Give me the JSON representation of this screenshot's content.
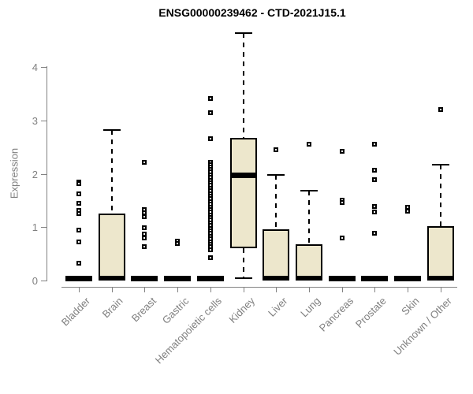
{
  "title": "ENSG00000239462 - CTD-2021J15.1",
  "chart_data": {
    "type": "boxplot",
    "title": "ENSG00000239462 - CTD-2021J15.1",
    "xlabel": "",
    "ylabel": "Expression",
    "ylim": [
      0,
      4.7
    ],
    "yticks": [
      0,
      1,
      2,
      3,
      4
    ],
    "grid": false,
    "legend": "none",
    "x_tick_rotation_deg": 45,
    "categories": [
      "Bladder",
      "Brain",
      "Breast",
      "Gastric",
      "Hematopoietic cells",
      "Kidney",
      "Liver",
      "Lung",
      "Pancreas",
      "Prostate",
      "Skin",
      "Unknown / Other"
    ],
    "series": [
      {
        "name": "Bladder",
        "q1": 0,
        "median": 0,
        "q3": 0,
        "whisker_low": 0,
        "whisker_high": 0,
        "outliers": [
          1.84,
          1.81,
          1.63,
          1.45,
          1.32,
          1.25,
          0.94,
          0.72,
          0.33
        ]
      },
      {
        "name": "Brain",
        "q1": 0,
        "median": 0,
        "q3": 1.26,
        "whisker_low": 0,
        "whisker_high": 2.82,
        "outliers": []
      },
      {
        "name": "Breast",
        "q1": 0,
        "median": 0,
        "q3": 0,
        "whisker_low": 0,
        "whisker_high": 0,
        "outliers": [
          2.21,
          1.33,
          1.27,
          1.2,
          0.99,
          0.87,
          0.79,
          0.63
        ]
      },
      {
        "name": "Gastric",
        "q1": 0,
        "median": 0,
        "q3": 0,
        "whisker_low": 0,
        "whisker_high": 0,
        "outliers": [
          0.74,
          0.7
        ]
      },
      {
        "name": "Hematopoietic cells",
        "q1": 0,
        "median": 0,
        "q3": 0,
        "whisker_low": 0,
        "whisker_high": 0,
        "outliers": [
          3.41,
          3.14,
          2.66,
          2.22,
          2.17,
          2.12,
          2.08,
          2.03,
          1.98,
          1.93,
          1.88,
          1.83,
          1.78,
          1.73,
          1.68,
          1.63,
          1.58,
          1.53,
          1.48,
          1.43,
          1.38,
          1.33,
          1.28,
          1.23,
          1.18,
          1.13,
          1.08,
          1.03,
          0.98,
          0.93,
          0.88,
          0.83,
          0.78,
          0.73,
          0.68,
          0.63,
          0.58,
          0.43
        ]
      },
      {
        "name": "Kidney",
        "q1": 0.61,
        "median": 1.98,
        "q3": 2.67,
        "whisker_low": 0.05,
        "whisker_high": 4.64,
        "outliers": []
      },
      {
        "name": "Liver",
        "q1": 0,
        "median": 0,
        "q3": 0.96,
        "whisker_low": 0,
        "whisker_high": 1.98,
        "outliers": [
          2.45
        ]
      },
      {
        "name": "Lung",
        "q1": 0,
        "median": 0,
        "q3": 0.68,
        "whisker_low": 0,
        "whisker_high": 1.69,
        "outliers": [
          2.56
        ]
      },
      {
        "name": "Pancreas",
        "q1": 0,
        "median": 0,
        "q3": 0,
        "whisker_low": 0,
        "whisker_high": 0,
        "outliers": [
          2.42,
          1.51,
          1.46,
          0.79
        ]
      },
      {
        "name": "Prostate",
        "q1": 0,
        "median": 0,
        "q3": 0,
        "whisker_low": 0,
        "whisker_high": 0,
        "outliers": [
          2.55,
          2.07,
          1.89,
          1.39,
          1.29,
          0.89
        ]
      },
      {
        "name": "Skin",
        "q1": 0,
        "median": 0,
        "q3": 0,
        "whisker_low": 0,
        "whisker_high": 0,
        "outliers": [
          1.38,
          1.3
        ]
      },
      {
        "name": "Unknown / Other",
        "q1": 0,
        "median": 0,
        "q3": 1.02,
        "whisker_low": 0,
        "whisker_high": 2.17,
        "outliers": [
          3.21
        ]
      }
    ],
    "colors": {
      "box_fill": "#EDE7CC",
      "box_border": "#000000",
      "median": "#000000",
      "whisker": "#000000",
      "axis": "#828282",
      "tick_label": "#7f7f7f",
      "title": "#000000",
      "background": "#ffffff"
    }
  }
}
